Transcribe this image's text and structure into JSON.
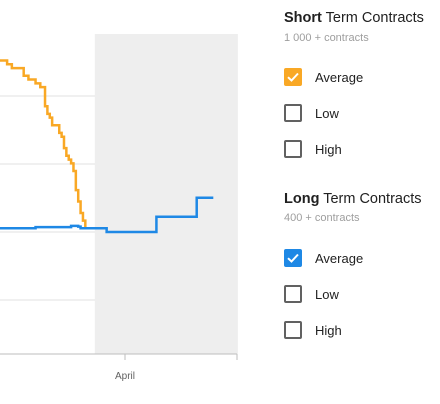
{
  "chart_data": {
    "type": "line",
    "x_tick_labels": [
      "April"
    ],
    "shaded_region_start_label": "April",
    "series": [
      {
        "name": "Short Term Contracts",
        "color": "#f9a825",
        "step": true,
        "points": [
          [
            0.0,
            97
          ],
          [
            0.02,
            97
          ],
          [
            0.03,
            96
          ],
          [
            0.05,
            95
          ],
          [
            0.08,
            95
          ],
          [
            0.1,
            93
          ],
          [
            0.12,
            92
          ],
          [
            0.14,
            92
          ],
          [
            0.15,
            91
          ],
          [
            0.17,
            90
          ],
          [
            0.19,
            85
          ],
          [
            0.2,
            83
          ],
          [
            0.21,
            82
          ],
          [
            0.22,
            80
          ],
          [
            0.24,
            80
          ],
          [
            0.25,
            78
          ],
          [
            0.26,
            77
          ],
          [
            0.27,
            74
          ],
          [
            0.28,
            72
          ],
          [
            0.29,
            71
          ],
          [
            0.3,
            70
          ],
          [
            0.31,
            68
          ],
          [
            0.32,
            63
          ],
          [
            0.33,
            60
          ],
          [
            0.34,
            57
          ],
          [
            0.35,
            55
          ],
          [
            0.36,
            53
          ]
        ]
      },
      {
        "name": "Long Term Contracts",
        "color": "#1e88e5",
        "step": true,
        "points": [
          [
            0.0,
            53
          ],
          [
            0.1,
            53
          ],
          [
            0.15,
            53.3
          ],
          [
            0.25,
            53.3
          ],
          [
            0.3,
            53.6
          ],
          [
            0.33,
            53.4
          ],
          [
            0.34,
            53
          ],
          [
            0.4,
            53
          ],
          [
            0.45,
            52
          ],
          [
            0.54,
            52
          ],
          [
            0.65,
            52
          ],
          [
            0.66,
            56
          ],
          [
            0.74,
            56
          ],
          [
            0.82,
            56
          ],
          [
            0.83,
            61
          ],
          [
            0.9,
            61
          ]
        ]
      }
    ]
  },
  "legend": {
    "short": {
      "title_bold": "Short",
      "title_rest": " Term Contracts",
      "subtitle": "1 000 + contracts",
      "options": [
        {
          "label": "Average",
          "checked": true,
          "color": "#f9a825"
        },
        {
          "label": "Low",
          "checked": false
        },
        {
          "label": "High",
          "checked": false
        }
      ]
    },
    "long": {
      "title_bold": "Long",
      "title_rest": " Term Contracts",
      "subtitle": "400 + contracts",
      "options": [
        {
          "label": "Average",
          "checked": true,
          "color": "#1e88e5"
        },
        {
          "label": "Low",
          "checked": false
        },
        {
          "label": "High",
          "checked": false
        }
      ]
    }
  }
}
